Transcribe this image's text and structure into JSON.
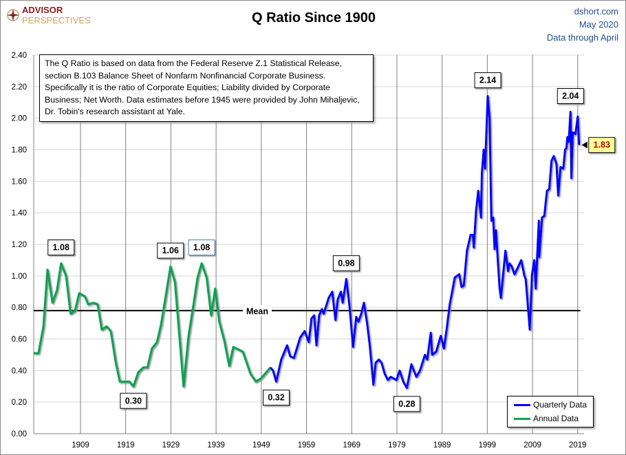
{
  "header": {
    "logo_line1": "ADVISOR",
    "logo_line2": "PERSPECTIVES",
    "title": "Q Ratio Since 1900",
    "source": "dshort.com",
    "date": "May 2020",
    "data_note": "Data through April"
  },
  "note": "The Q Ratio is based on data from the Federal Reserve Z.1 Statistical Release, section B.103 Balance Sheet of Nonfarm Nonfinancial Corporate Business. Specifically it is the ratio  of Corporate Equities; Liability divided by Corporate Business; Net Worth.  Data estimates before 1945 were provided by John Mihaljevic, Dr. Tobin's research assistant at Yale.",
  "colors": {
    "quarterly": "#0000ff",
    "annual": "#00a550",
    "mean": "#000000",
    "grid": "#d9d9d9",
    "vgrid": "#808080",
    "latest_bg": "#ffff99",
    "latest_text": "#c00000"
  },
  "chart_data": {
    "type": "line",
    "title": "Q Ratio Since 1900",
    "xlim": [
      1898.65,
      2020.4
    ],
    "ylim": [
      0,
      2.4
    ],
    "grid": true,
    "legend_placement": "bottom-right",
    "x_ticks": [
      "1909",
      "1919",
      "1929",
      "1939",
      "1949",
      "1959",
      "1969",
      "1979",
      "1989",
      "1999",
      "2009",
      "2019"
    ],
    "y_ticks": [
      "0.00",
      "0.20",
      "0.40",
      "0.60",
      "0.80",
      "1.00",
      "1.20",
      "1.40",
      "1.60",
      "1.80",
      "2.00",
      "2.20",
      "2.40"
    ],
    "mean": {
      "label": "Mean",
      "value": 0.78
    },
    "series": [
      {
        "name": "Annual Data",
        "points": [
          [
            1898.65,
            0.51
          ],
          [
            1899.7,
            0.51
          ],
          [
            1900.8,
            0.68
          ],
          [
            1901.7,
            1.04
          ],
          [
            1902.8,
            0.83
          ],
          [
            1903.8,
            0.91
          ],
          [
            1904.7,
            1.08
          ],
          [
            1905.8,
            1.0
          ],
          [
            1906.8,
            0.76
          ],
          [
            1907.8,
            0.78
          ],
          [
            1908.7,
            0.89
          ],
          [
            1910,
            0.87
          ],
          [
            1910.7,
            0.82
          ],
          [
            1911.9,
            0.83
          ],
          [
            1912.8,
            0.82
          ],
          [
            1913.7,
            0.66
          ],
          [
            1914.8,
            0.68
          ],
          [
            1915.7,
            0.65
          ],
          [
            1916.8,
            0.45
          ],
          [
            1917.7,
            0.33
          ],
          [
            1919.8,
            0.33
          ],
          [
            1920.7,
            0.3
          ],
          [
            1921.8,
            0.39
          ],
          [
            1922.9,
            0.42
          ],
          [
            1923.8,
            0.42
          ],
          [
            1924.8,
            0.54
          ],
          [
            1925.9,
            0.58
          ],
          [
            1926.8,
            0.69
          ],
          [
            1927.9,
            0.88
          ],
          [
            1928.9,
            1.06
          ],
          [
            1929.9,
            0.96
          ],
          [
            1931.8,
            0.3
          ],
          [
            1932.9,
            0.62
          ],
          [
            1934,
            0.82
          ],
          [
            1934.9,
            0.99
          ],
          [
            1935.8,
            1.08
          ],
          [
            1936.9,
            0.99
          ],
          [
            1937.9,
            0.75
          ],
          [
            1938.8,
            0.92
          ],
          [
            1939.7,
            0.71
          ],
          [
            1940.8,
            0.59
          ],
          [
            1941.9,
            0.43
          ],
          [
            1942.8,
            0.55
          ],
          [
            1944.9,
            0.52
          ],
          [
            1946.6,
            0.38
          ],
          [
            1947.8,
            0.33
          ],
          [
            1948.9,
            0.35
          ],
          [
            1951,
            0.42
          ]
        ]
      },
      {
        "name": "Quarterly Data",
        "points": [
          [
            1951,
            0.42
          ],
          [
            1951.6,
            0.4
          ],
          [
            1952.3,
            0.33
          ],
          [
            1953.4,
            0.47
          ],
          [
            1954.7,
            0.56
          ],
          [
            1955.4,
            0.49
          ],
          [
            1956.2,
            0.48
          ],
          [
            1957.6,
            0.61
          ],
          [
            1958.6,
            0.65
          ],
          [
            1959.5,
            0.58
          ],
          [
            1960.1,
            0.73
          ],
          [
            1960.7,
            0.75
          ],
          [
            1961.2,
            0.56
          ],
          [
            1961.8,
            0.75
          ],
          [
            1962.4,
            0.79
          ],
          [
            1962.8,
            0.76
          ],
          [
            1963.9,
            0.86
          ],
          [
            1964.7,
            0.9
          ],
          [
            1965.4,
            0.72
          ],
          [
            1965.9,
            0.85
          ],
          [
            1966.6,
            0.9
          ],
          [
            1967,
            0.83
          ],
          [
            1967.8,
            0.98
          ],
          [
            1968.5,
            0.81
          ],
          [
            1969.3,
            0.55
          ],
          [
            1970,
            0.74
          ],
          [
            1970.5,
            0.71
          ],
          [
            1971.1,
            0.76
          ],
          [
            1971.7,
            0.83
          ],
          [
            1972.4,
            0.7
          ],
          [
            1973,
            0.56
          ],
          [
            1973.8,
            0.31
          ],
          [
            1974.3,
            0.45
          ],
          [
            1975,
            0.47
          ],
          [
            1975.6,
            0.45
          ],
          [
            1976.3,
            0.38
          ],
          [
            1977,
            0.34
          ],
          [
            1977.6,
            0.36
          ],
          [
            1978.9,
            0.34
          ],
          [
            1979.6,
            0.4
          ],
          [
            1980.4,
            0.33
          ],
          [
            1981.2,
            0.29
          ],
          [
            1982.2,
            0.44
          ],
          [
            1983.3,
            0.36
          ],
          [
            1984.1,
            0.4
          ],
          [
            1985.2,
            0.5
          ],
          [
            1985.7,
            0.47
          ],
          [
            1986.5,
            0.64
          ],
          [
            1986.8,
            0.5
          ],
          [
            1987.7,
            0.52
          ],
          [
            1988.7,
            0.62
          ],
          [
            1989.4,
            0.54
          ],
          [
            1990,
            0.66
          ],
          [
            1990.7,
            0.82
          ],
          [
            1991.8,
            0.99
          ],
          [
            1992.8,
            1.01
          ],
          [
            1993.3,
            0.93
          ],
          [
            1993.8,
            0.94
          ],
          [
            1994.5,
            1.16
          ],
          [
            1995.3,
            1.26
          ],
          [
            1995.8,
            1.26
          ],
          [
            1996,
            1.18
          ],
          [
            1996.5,
            1.41
          ],
          [
            1997,
            1.54
          ],
          [
            1997.6,
            1.37
          ],
          [
            1997.8,
            1.65
          ],
          [
            1998.2,
            1.8
          ],
          [
            1998.5,
            1.68
          ],
          [
            1999.1,
            2.14
          ],
          [
            1999.5,
            2.0
          ],
          [
            1999.9,
            1.35
          ],
          [
            2000.3,
            1.37
          ],
          [
            2000.6,
            1.17
          ],
          [
            2000.9,
            1.29
          ],
          [
            2001.7,
            0.93
          ],
          [
            2002,
            0.86
          ],
          [
            2002.5,
            1.01
          ],
          [
            2003,
            1.16
          ],
          [
            2003.6,
            1.03
          ],
          [
            2003.9,
            1.08
          ],
          [
            2004.4,
            1.06
          ],
          [
            2005,
            1.01
          ],
          [
            2005.7,
            1.05
          ],
          [
            2006.5,
            1.1
          ],
          [
            2007.2,
            1.0
          ],
          [
            2007.5,
            0.98
          ],
          [
            2008.4,
            0.66
          ],
          [
            2008.9,
            1.01
          ],
          [
            2009.4,
            1.1
          ],
          [
            2009.7,
            0.92
          ],
          [
            2010.4,
            1.35
          ],
          [
            2010.5,
            1.12
          ],
          [
            2011.1,
            1.37
          ],
          [
            2011.6,
            1.38
          ],
          [
            2012.2,
            1.54
          ],
          [
            2012.7,
            1.55
          ],
          [
            2013.2,
            1.73
          ],
          [
            2013.7,
            1.76
          ],
          [
            2014.3,
            1.71
          ],
          [
            2014.7,
            1.51
          ],
          [
            2015.2,
            1.69
          ],
          [
            2015.8,
            1.68
          ],
          [
            2016.2,
            1.8
          ],
          [
            2016.5,
            1.81
          ],
          [
            2016.7,
            1.88
          ],
          [
            2017,
            1.85
          ],
          [
            2017.4,
            2.04
          ],
          [
            2017.6,
            1.62
          ],
          [
            2017.9,
            1.91
          ],
          [
            2018.5,
            1.9
          ],
          [
            2019,
            2.01
          ],
          [
            2019.3,
            1.83
          ]
        ]
      }
    ],
    "annotations": [
      {
        "label": "1.08",
        "x": 1904.7,
        "y": 1.08,
        "pos": "above"
      },
      {
        "label": "0.30",
        "x": 1920.7,
        "y": 0.3,
        "pos": "below"
      },
      {
        "label": "1.06",
        "x": 1928.9,
        "y": 1.06,
        "pos": "above"
      },
      {
        "label": "1.08",
        "x": 1935.8,
        "y": 1.08,
        "pos": "above",
        "border": "#4f81bd"
      },
      {
        "label": "0.32",
        "x": 1952.3,
        "y": 0.32,
        "pos": "below"
      },
      {
        "label": "0.98",
        "x": 1967.8,
        "y": 0.98,
        "pos": "above"
      },
      {
        "label": "0.28",
        "x": 1981.2,
        "y": 0.28,
        "pos": "below"
      },
      {
        "label": "2.14",
        "x": 1999.1,
        "y": 2.14,
        "pos": "above"
      },
      {
        "label": "2.04",
        "x": 2017.4,
        "y": 2.04,
        "pos": "above"
      },
      {
        "label": "1.83",
        "x": 2019.3,
        "y": 1.83,
        "pos": "right",
        "latest": true
      }
    ]
  },
  "legend": {
    "quarterly": "Quarterly Data",
    "annual": "Annual Data"
  }
}
